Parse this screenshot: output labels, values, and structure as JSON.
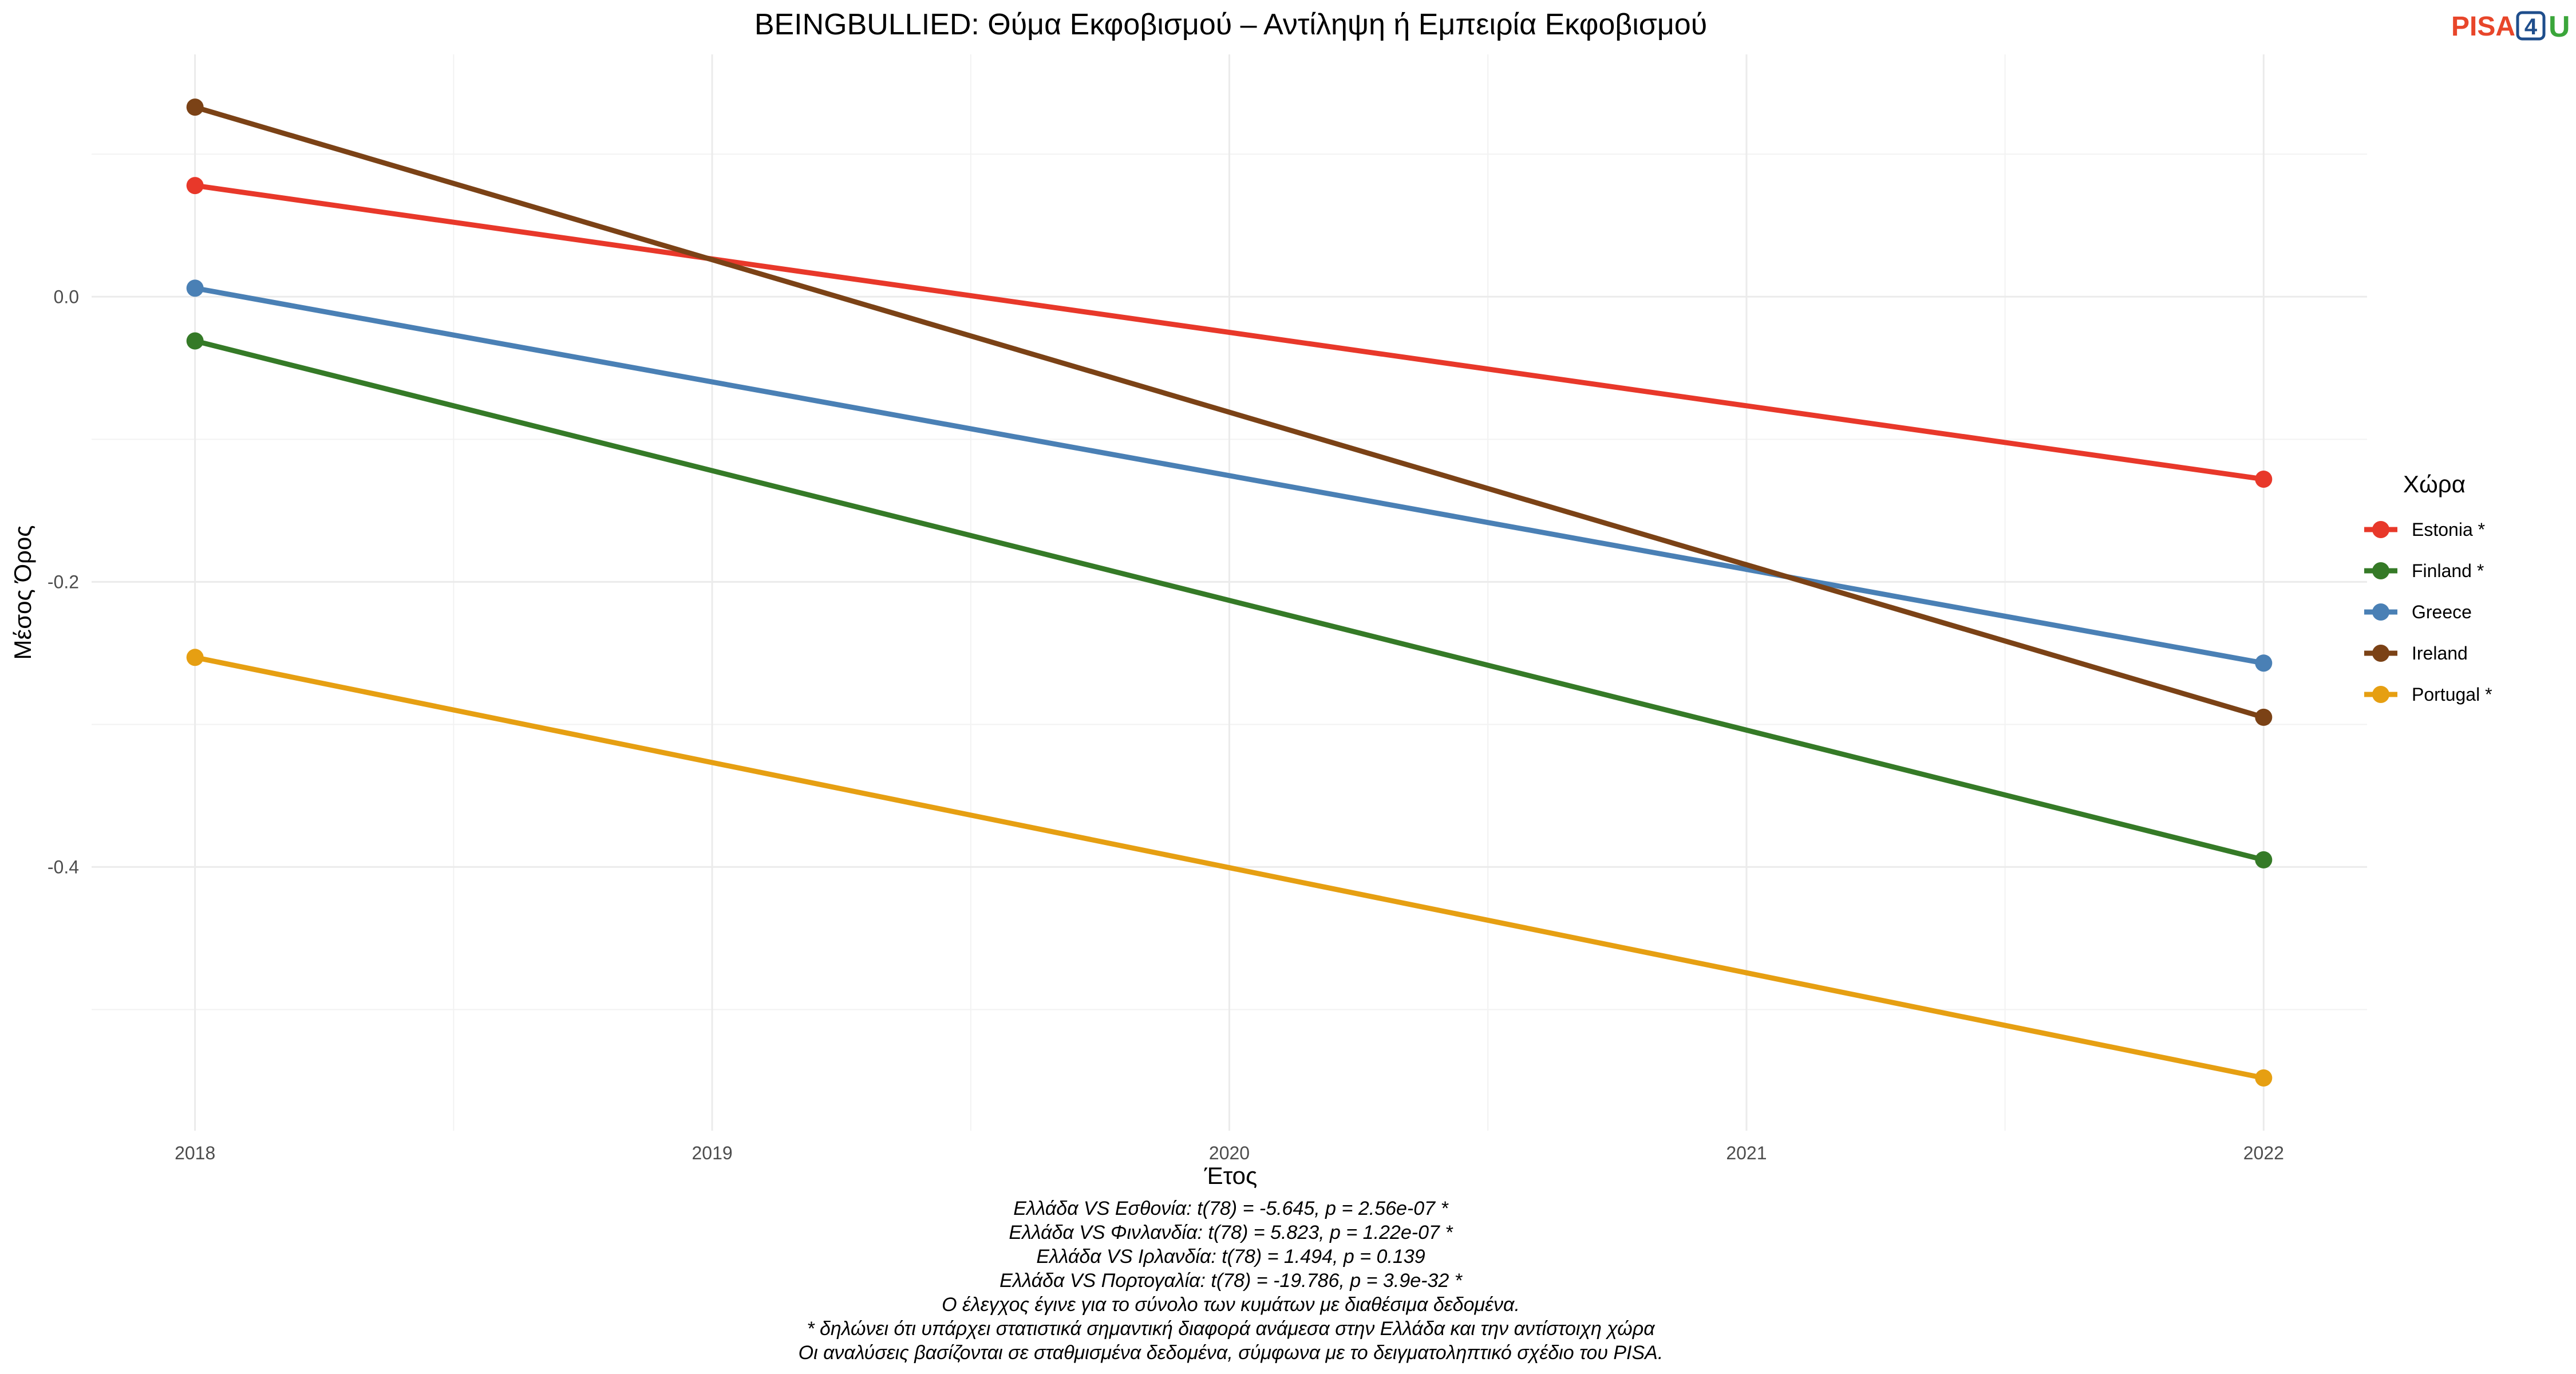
{
  "chart_data": {
    "type": "line",
    "title": "BEINGBULLIED: Θύμα Εκφοβισμού – Αντίληψη ή Εμπειρία Εκφοβισμού",
    "xlabel": "Έτος",
    "ylabel": "Μέσος Όρος",
    "x": [
      2018,
      2022
    ],
    "xlim": [
      2017.8,
      2022.2
    ],
    "ylim": [
      -0.585,
      0.17
    ],
    "x_ticks": [
      "2018",
      "2019",
      "2020",
      "2021",
      "2022"
    ],
    "y_ticks": [
      "0.0",
      "-0.2",
      "-0.4"
    ],
    "grid": true,
    "legend_title": "Χώρα",
    "legend_position": "right",
    "series": [
      {
        "name": "Estonia *",
        "color": "#e8382a",
        "values": [
          0.078,
          -0.128
        ]
      },
      {
        "name": "Finland *",
        "color": "#357a27",
        "values": [
          -0.031,
          -0.395
        ]
      },
      {
        "name": "Greece",
        "color": "#4a80b5",
        "values": [
          0.006,
          -0.257
        ]
      },
      {
        "name": "Ireland",
        "color": "#7b4216",
        "values": [
          0.133,
          -0.295
        ]
      },
      {
        "name": "Portugal *",
        "color": "#e69f12",
        "values": [
          -0.253,
          -0.548
        ]
      }
    ],
    "notes": [
      "Ελλάδα VS Εσθονία: t(78) = -5.645, p = 2.56e-07 *",
      "Ελλάδα VS Φινλανδία: t(78) = 5.823, p = 1.22e-07 *",
      "Ελλάδα VS Ιρλανδία: t(78) = 1.494, p = 0.139",
      "Ελλάδα VS Πορτογαλία: t(78) = -19.786, p = 3.9e-32 *",
      "Ο έλεγχος έγινε για το σύνολο των κυμάτων με διαθέσιμα δεδομένα.",
      "* δηλώνει ότι υπάρχει στατιστικά σημαντική διαφορά ανάμεσα στην Ελλάδα και την αντίστοιχη χώρα",
      "Οι αναλύσεις βασίζονται σε σταθμισμένα δεδομένα, σύμφωνα με το δειγματοληπτικό σχέδιο του PISA."
    ]
  },
  "logo": {
    "pisa": "PISA",
    "four": "4",
    "u": "U"
  }
}
